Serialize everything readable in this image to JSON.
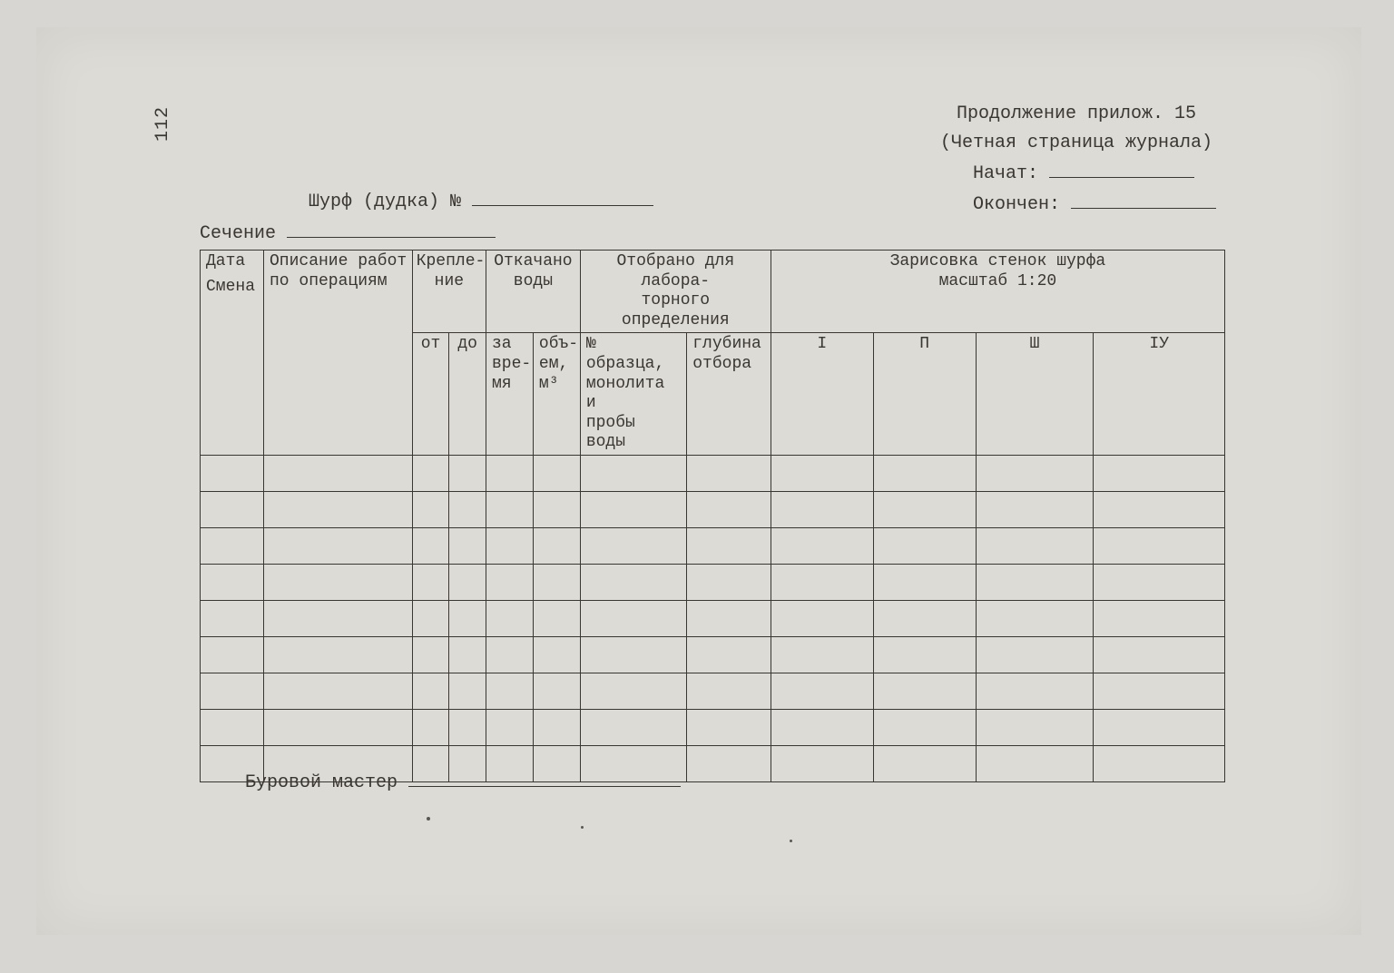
{
  "page_number": "112",
  "header": {
    "continuation": "Продолжение прилож. 15",
    "even_page_note": "(Четная страница журнала)",
    "started_label": "Начат:",
    "finished_label": "Окончен:"
  },
  "form_fields": {
    "shurf_label": "Шурф (дудка) №",
    "section_label": "Сечение"
  },
  "table": {
    "columns": {
      "date_line1": "Дата",
      "date_line2": "Смена",
      "description": "Описание работ по операциям",
      "fixing": "Крепле-\nние",
      "fixing_from": "от",
      "fixing_to": "до",
      "pumped": "Откачано\nводы",
      "pumped_time": "за\nвре-\nмя",
      "pumped_volume": "объ-\nем,\nм³",
      "lab": "Отобрано для лабора-\nторного определения",
      "lab_sample": "№ образца,\nмонолита и\nпробы воды",
      "lab_depth": "глубина\nотбора",
      "sketch": "Зарисовка стенок шурфа\nмасштаб 1:20",
      "wall1": "I",
      "wall2": "П",
      "wall3": "Ш",
      "wall4": "IУ"
    },
    "body_rows": 9,
    "col_widths_pct": [
      6.2,
      14.5,
      3.6,
      3.6,
      4.6,
      4.6,
      10.4,
      8.2,
      10.0,
      10.0,
      11.5,
      12.8
    ],
    "border_color": "#3a3632",
    "background_color": "#dddbd6",
    "font_size_pt": 14
  },
  "footer": {
    "drillmaster_label": "Буровой мастер"
  },
  "styling": {
    "page_bg": "#dddbd6",
    "outer_bg": "#d8d6d2",
    "text_color": "#3a3632",
    "font_family": "Courier New"
  }
}
